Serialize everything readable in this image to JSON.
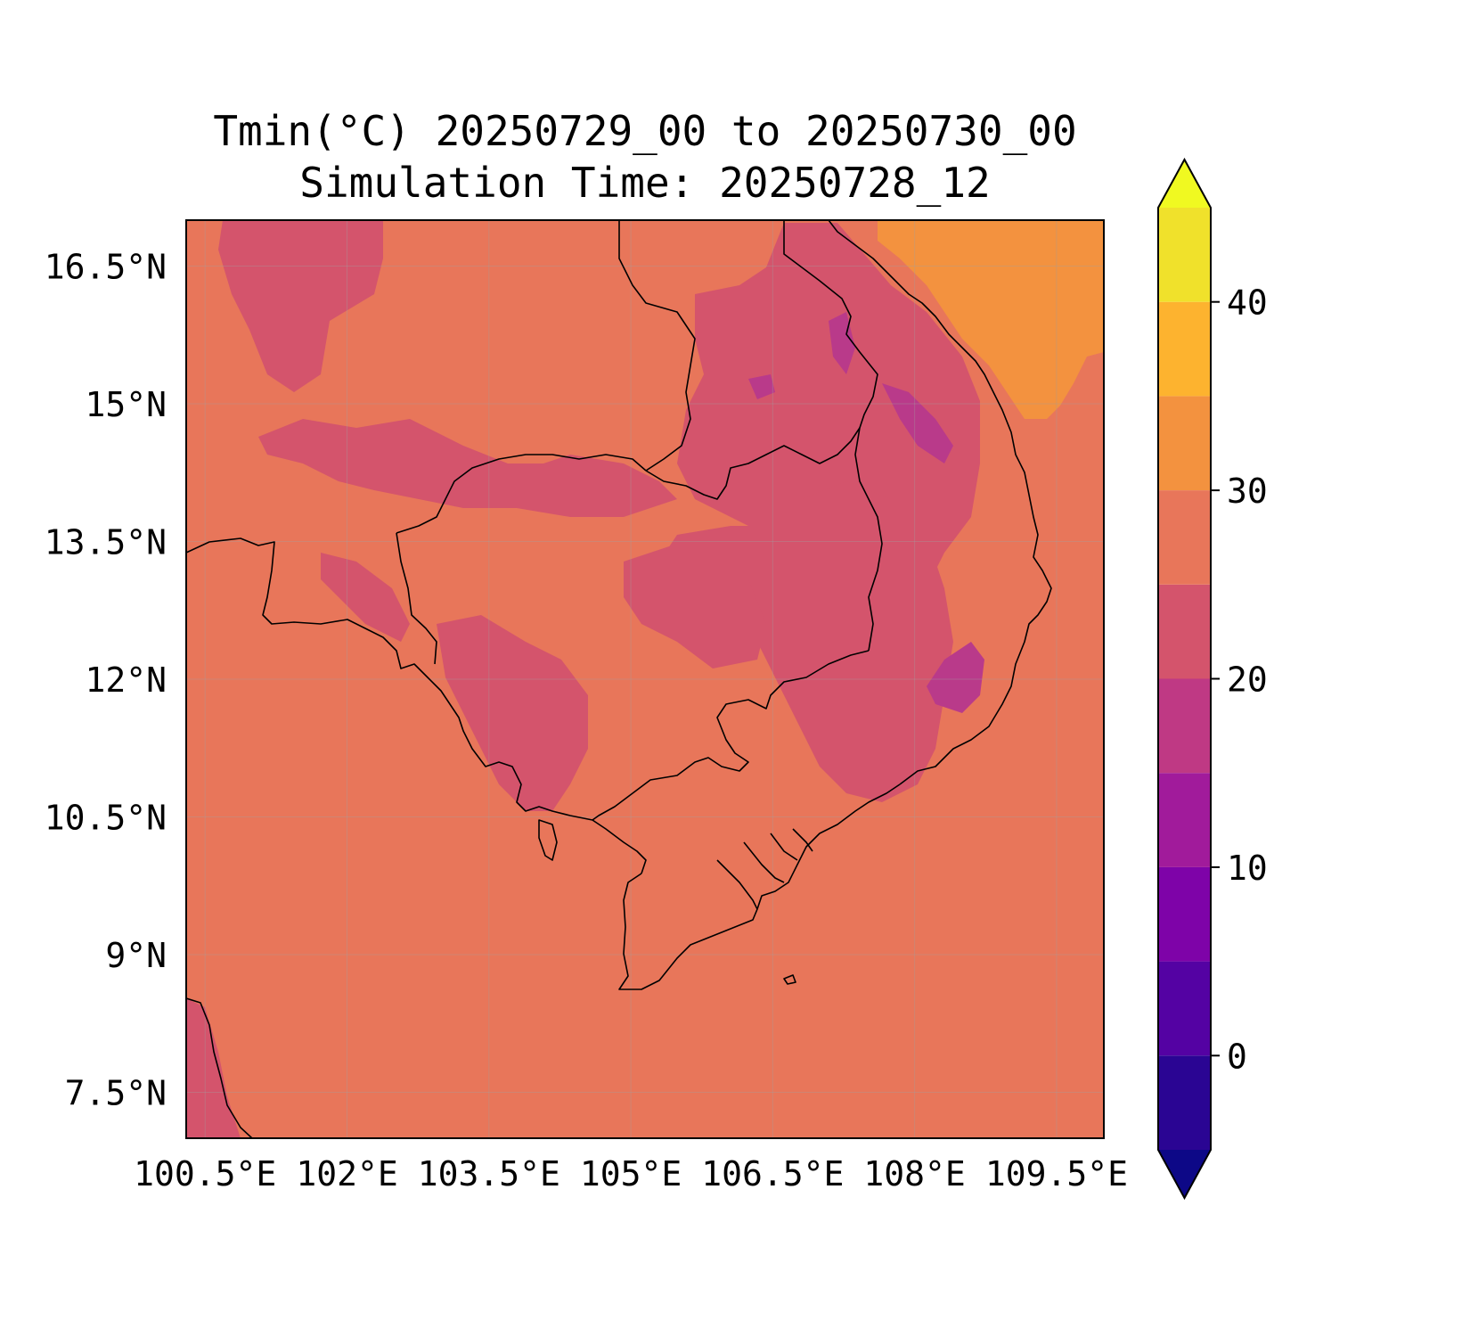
{
  "title": {
    "line1": "Tmin(°C) 20250729_00 to 20250730_00",
    "line2": "Simulation Time: 20250728_12"
  },
  "map": {
    "variable": "Tmin",
    "units": "°C",
    "lon_range": [
      100.3,
      110.0
    ],
    "lat_range": [
      7.0,
      17.0
    ],
    "lat_ticks": [
      16.5,
      15,
      13.5,
      12,
      10.5,
      9,
      7.5
    ],
    "lat_tick_labels": [
      "16.5°N",
      "15°N",
      "13.5°N",
      "12°N",
      "10.5°N",
      "9°N",
      "7.5°N"
    ],
    "lon_ticks": [
      100.5,
      102,
      103.5,
      105,
      106.5,
      108,
      109.5
    ],
    "lon_tick_labels": [
      "100.5°E",
      "102°E",
      "103.5°E",
      "105°E",
      "106.5°E",
      "108°E",
      "109.5°E"
    ],
    "gridlines": true,
    "coastlines": true,
    "borders": true,
    "background_level_color": "#e8765a",
    "region_colors": {
      "cool_20_25": "#d4546c",
      "cooler_15_20": "#b93a8a",
      "warm_30_35": "#f3923f"
    }
  },
  "colorbar": {
    "levels": [
      -5,
      0,
      5,
      10,
      15,
      20,
      25,
      30,
      35,
      40,
      45
    ],
    "tick_values": [
      0,
      10,
      20,
      30,
      40
    ],
    "tick_labels": [
      "0",
      "10",
      "20",
      "30",
      "40"
    ],
    "colors": [
      "#0d0887",
      "#2a0593",
      "#5402a3",
      "#7e03a8",
      "#a11b9b",
      "#bf3984",
      "#d4546c",
      "#e8765a",
      "#f3923f",
      "#fdb32f",
      "#f0e12b",
      "#f0f921"
    ],
    "extend": "both",
    "under_color": "#0d0887",
    "over_color": "#f0f921"
  }
}
